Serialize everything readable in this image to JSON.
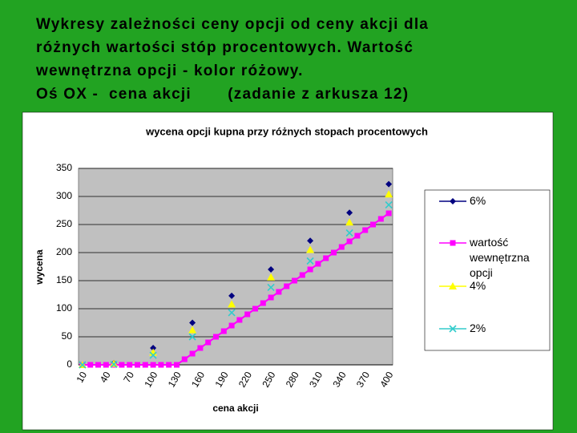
{
  "slide_title": [
    "Wykresy zależności ceny opcji od ceny akcji dla",
    "różnych wartości stóp procentowych. Wartość",
    "wewnętrzna opcji - kolor różowy.",
    "Oś OX -  cena akcji       (zadanie z arkusza 12)"
  ],
  "chart_data": {
    "type": "line",
    "title": "wycena opcji kupna przy różnych stopach procentowych",
    "x_label": "cena akcji",
    "y_label": "wycena",
    "categories": [
      "10",
      null,
      null,
      "40",
      null,
      null,
      "70",
      null,
      null,
      "100",
      null,
      null,
      "130",
      null,
      null,
      "160",
      null,
      null,
      "190",
      null,
      null,
      "220",
      null,
      null,
      "250",
      null,
      null,
      "280",
      null,
      null,
      "310",
      null,
      null,
      "340",
      null,
      null,
      "370",
      null,
      null,
      "400"
    ],
    "series": [
      {
        "name": "6%",
        "color": "#000080",
        "marker": "diamond",
        "line": false,
        "values": [
          0,
          null,
          null,
          null,
          3,
          null,
          null,
          null,
          null,
          30,
          null,
          null,
          null,
          null,
          75,
          null,
          null,
          null,
          null,
          123,
          null,
          null,
          null,
          null,
          170,
          null,
          null,
          null,
          null,
          221,
          null,
          null,
          null,
          null,
          271,
          null,
          null,
          null,
          null,
          322
        ]
      },
      {
        "name": "wartość wewnętrzna opcji",
        "color": "#ff00ff",
        "marker": "square",
        "line": true,
        "values": [
          0,
          0,
          0,
          0,
          0,
          0,
          0,
          0,
          0,
          0,
          0,
          0,
          0,
          10,
          20,
          30,
          40,
          50,
          60,
          70,
          80,
          90,
          100,
          110,
          120,
          130,
          140,
          150,
          160,
          170,
          180,
          190,
          200,
          210,
          220,
          230,
          240,
          250,
          260,
          270
        ]
      },
      {
        "name": "4%",
        "color": "#ffff00",
        "marker": "triangle",
        "line": false,
        "values": [
          0,
          null,
          null,
          null,
          2,
          null,
          null,
          null,
          null,
          22,
          null,
          null,
          null,
          null,
          62,
          null,
          null,
          null,
          null,
          108,
          null,
          null,
          null,
          null,
          156,
          null,
          null,
          null,
          null,
          205,
          null,
          null,
          null,
          null,
          254,
          null,
          null,
          null,
          null,
          304
        ]
      },
      {
        "name": "2%",
        "color": "#33cccc",
        "marker": "x",
        "line": false,
        "values": [
          0,
          null,
          null,
          null,
          1,
          null,
          null,
          null,
          null,
          17,
          null,
          null,
          null,
          null,
          50,
          null,
          null,
          null,
          null,
          93,
          null,
          null,
          null,
          null,
          138,
          null,
          null,
          null,
          null,
          185,
          null,
          null,
          null,
          null,
          235,
          null,
          null,
          null,
          null,
          285
        ]
      }
    ],
    "ylim": [
      0,
      350
    ],
    "yticks": [
      0,
      50,
      100,
      150,
      200,
      250,
      300,
      350
    ],
    "grid": true,
    "legend": "right"
  }
}
